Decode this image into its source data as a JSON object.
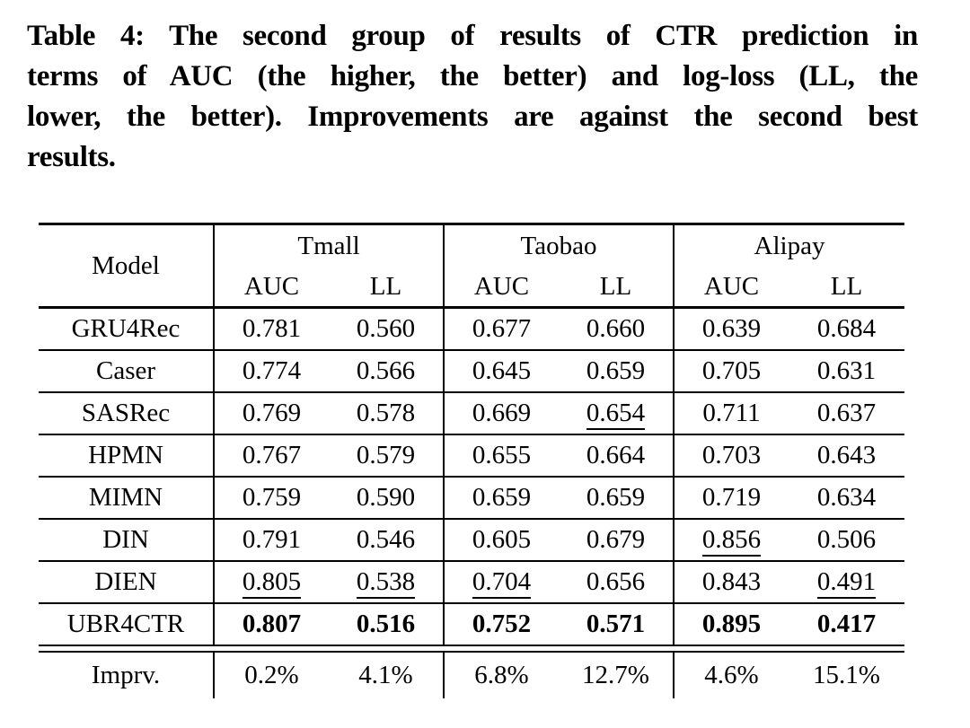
{
  "caption": {
    "lines": [
      "Table 4: The second group of results of CTR prediction in",
      "terms of AUC (the higher, the better) and log-loss (LL, the",
      "lower, the better). Improvements are against the second best",
      "results."
    ]
  },
  "table": {
    "header": {
      "model_label": "Model",
      "groups": [
        {
          "name": "Tmall",
          "metrics": [
            "AUC",
            "LL"
          ]
        },
        {
          "name": "Taobao",
          "metrics": [
            "AUC",
            "LL"
          ]
        },
        {
          "name": "Alipay",
          "metrics": [
            "AUC",
            "LL"
          ]
        }
      ]
    },
    "rows": [
      {
        "model": "GRU4Rec",
        "cells": [
          {
            "v": "0.781"
          },
          {
            "v": "0.560"
          },
          {
            "v": "0.677"
          },
          {
            "v": "0.660"
          },
          {
            "v": "0.639"
          },
          {
            "v": "0.684"
          }
        ]
      },
      {
        "model": "Caser",
        "cells": [
          {
            "v": "0.774"
          },
          {
            "v": "0.566"
          },
          {
            "v": "0.645"
          },
          {
            "v": "0.659"
          },
          {
            "v": "0.705"
          },
          {
            "v": "0.631"
          }
        ]
      },
      {
        "model": "SASRec",
        "cells": [
          {
            "v": "0.769"
          },
          {
            "v": "0.578"
          },
          {
            "v": "0.669"
          },
          {
            "v": "0.654",
            "underline": true
          },
          {
            "v": "0.711"
          },
          {
            "v": "0.637"
          }
        ]
      },
      {
        "model": "HPMN",
        "cells": [
          {
            "v": "0.767"
          },
          {
            "v": "0.579"
          },
          {
            "v": "0.655"
          },
          {
            "v": "0.664"
          },
          {
            "v": "0.703"
          },
          {
            "v": "0.643"
          }
        ]
      },
      {
        "model": "MIMN",
        "cells": [
          {
            "v": "0.759"
          },
          {
            "v": "0.590"
          },
          {
            "v": "0.659"
          },
          {
            "v": "0.659"
          },
          {
            "v": "0.719"
          },
          {
            "v": "0.634"
          }
        ]
      },
      {
        "model": "DIN",
        "cells": [
          {
            "v": "0.791"
          },
          {
            "v": "0.546"
          },
          {
            "v": "0.605"
          },
          {
            "v": "0.679"
          },
          {
            "v": "0.856",
            "underline": true
          },
          {
            "v": "0.506"
          }
        ]
      },
      {
        "model": "DIEN",
        "cells": [
          {
            "v": "0.805",
            "underline": true
          },
          {
            "v": "0.538",
            "underline": true
          },
          {
            "v": "0.704",
            "underline": true
          },
          {
            "v": "0.656"
          },
          {
            "v": "0.843"
          },
          {
            "v": "0.491",
            "underline": true
          }
        ]
      },
      {
        "model": "UBR4CTR",
        "cells": [
          {
            "v": "0.807",
            "bold": true
          },
          {
            "v": "0.516",
            "bold": true
          },
          {
            "v": "0.752",
            "bold": true
          },
          {
            "v": "0.571",
            "bold": true
          },
          {
            "v": "0.895",
            "bold": true
          },
          {
            "v": "0.417",
            "bold": true
          }
        ]
      }
    ],
    "improvement_row": {
      "model": "Imprv.",
      "cells": [
        {
          "v": "0.2%"
        },
        {
          "v": "4.1%"
        },
        {
          "v": "6.8%"
        },
        {
          "v": "12.7%"
        },
        {
          "v": "4.6%"
        },
        {
          "v": "15.1%"
        }
      ]
    }
  }
}
